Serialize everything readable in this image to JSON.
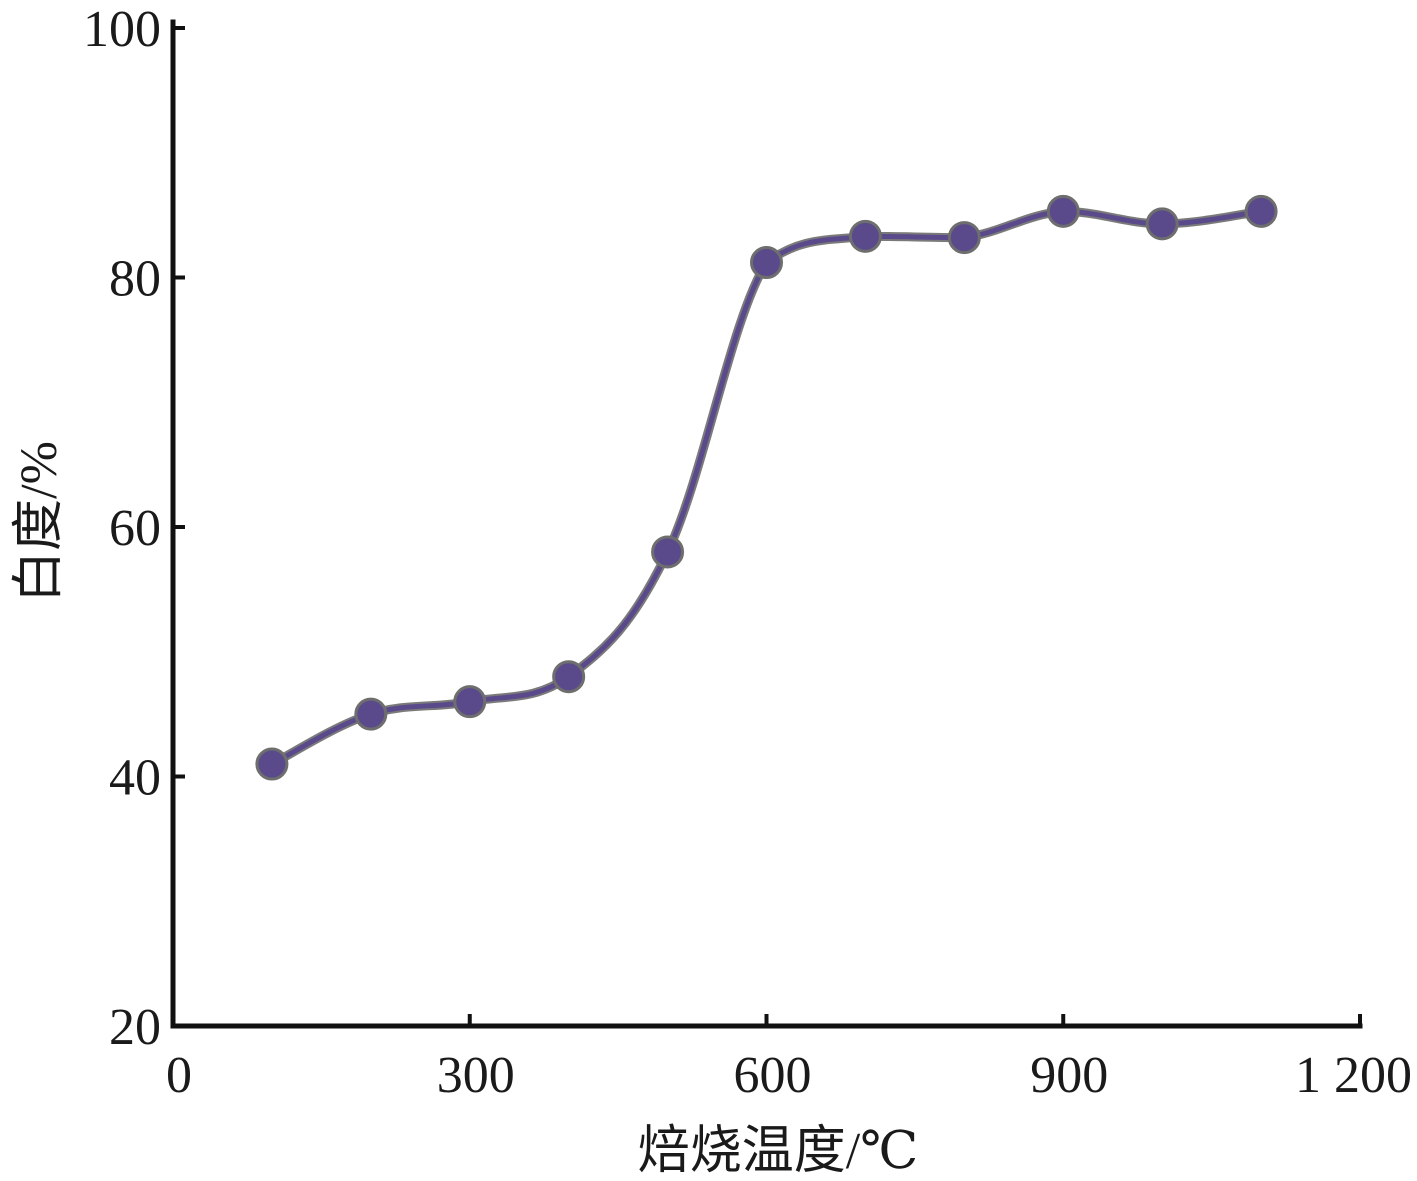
{
  "chart_data": {
    "type": "line",
    "title": "",
    "xlabel": "焙烧温度/℃",
    "ylabel": "白度/%",
    "xlim": [
      0,
      1200
    ],
    "ylim": [
      20,
      100
    ],
    "xticks": [
      0,
      300,
      600,
      900,
      1200
    ],
    "xtick_labels": [
      "0",
      "300",
      "600",
      "900",
      "1 200"
    ],
    "yticks": [
      20,
      40,
      60,
      80,
      100
    ],
    "ytick_labels": [
      "20",
      "40",
      "60",
      "80",
      "100"
    ],
    "grid": false,
    "legend": "none",
    "series": [
      {
        "color": "#5b4a8b",
        "x": [
          100,
          200,
          300,
          400,
          500,
          600,
          700,
          800,
          900,
          1000,
          1100
        ],
        "y": [
          41,
          45,
          46,
          48,
          58,
          81.2,
          83.3,
          83.2,
          85.3,
          84.3,
          85.3
        ]
      }
    ]
  }
}
